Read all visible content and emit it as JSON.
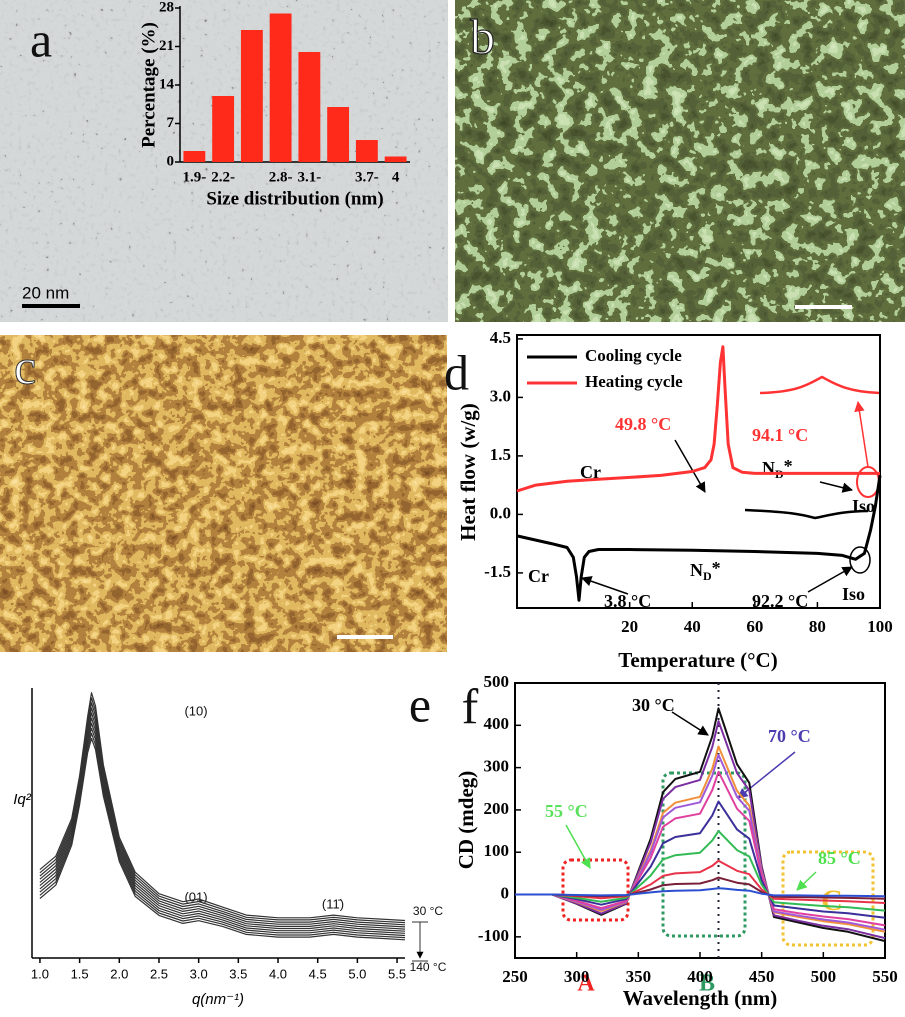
{
  "images": [
    {
      "panel": "a",
      "scale_bar": "20 nm"
    },
    {
      "panel": "b"
    },
    {
      "panel": "c"
    }
  ],
  "chart_data": [
    {
      "type": "bar",
      "ylabel": "Percentage (%)",
      "xlabel": "Size distribution (nm)",
      "categories": [
        "1.9-",
        "2.2-",
        null,
        "2.8-",
        "3.1-",
        null,
        "3.7-",
        "4"
      ],
      "values": [
        2,
        12,
        24,
        27,
        20,
        10,
        4,
        1
      ],
      "color": "#ff2a1a",
      "ylim": [
        0,
        28
      ],
      "yticks": [
        0,
        7,
        14,
        21,
        28
      ]
    },
    {
      "panel": "d",
      "type": "line",
      "xlabel": "Temperature (°C)",
      "ylabel": "Heat flow (w/g)",
      "xlim": [
        -16,
        100
      ],
      "xticks": [
        20,
        40,
        60,
        80,
        100
      ],
      "ylim": [
        -2.4,
        4.6
      ],
      "yticks": [
        -1.5,
        {
          "value": 0,
          "label": "0.0"
        },
        1.5,
        {
          "value": 3,
          "label": "3.0"
        },
        4.5
      ],
      "legend": "upper left",
      "series": [
        {
          "name": "Cooling cycle",
          "color": "#000000",
          "x": [
            -16,
            -5,
            0,
            2,
            3,
            3.8,
            4.5,
            5.5,
            7,
            10,
            20,
            40,
            60,
            80,
            88,
            92.2,
            95,
            97,
            98.5,
            100
          ],
          "values": [
            -0.55,
            -0.75,
            -0.85,
            -1.1,
            -1.6,
            -2.2,
            -1.6,
            -1.1,
            -0.95,
            -0.9,
            -0.9,
            -0.92,
            -0.95,
            -1.0,
            -1.05,
            -1.15,
            -1.0,
            -0.4,
            0.2,
            1.0
          ]
        },
        {
          "name": "Heating cycle",
          "color": "#ff3333",
          "x": [
            -16,
            -10,
            0,
            10,
            20,
            30,
            40,
            44,
            46,
            47,
            48,
            49,
            49.8,
            50.5,
            51.5,
            53,
            56,
            60,
            70,
            80,
            90,
            100
          ],
          "values": [
            0.6,
            0.75,
            0.85,
            0.9,
            0.95,
            1.0,
            1.1,
            1.2,
            1.4,
            1.8,
            2.8,
            3.9,
            4.3,
            3.2,
            1.8,
            1.2,
            1.08,
            1.05,
            1.05,
            1.05,
            1.05,
            1.05
          ]
        }
      ],
      "annotations": [
        {
          "text": "49.8 °C",
          "color": "#ff3333"
        },
        {
          "text": "94.1 °C",
          "color": "#ff3333"
        },
        {
          "text": "Cr",
          "color": "#000000"
        },
        {
          "text": "N",
          "sub": "D",
          "tail": "*",
          "color": "#000000"
        },
        {
          "text": "Iso",
          "color": "#000000"
        },
        {
          "text": "Cr",
          "color": "#000000"
        },
        {
          "text": "N",
          "sub": "D",
          "tail": "*",
          "color": "#000000"
        },
        {
          "text": "3.8 °C",
          "color": "#000000"
        },
        {
          "text": "92.2 °C",
          "color": "#000000"
        },
        {
          "text": "Iso",
          "color": "#000000"
        }
      ]
    },
    {
      "panel": "e",
      "type": "line",
      "xlabel": "q(nm⁻¹)",
      "ylabel": "Iq²",
      "xlim": [
        0.9,
        5.6
      ],
      "xticks": [
        {
          "value": 1,
          "label": "1.0"
        },
        1.5,
        {
          "value": 2,
          "label": "2.0"
        },
        2.5,
        {
          "value": 3,
          "label": "3.0"
        },
        3.5,
        {
          "value": 4,
          "label": "4.0"
        },
        4.5,
        {
          "value": 5,
          "label": "5.0"
        },
        5.5
      ],
      "ylim": [
        0,
        100
      ],
      "x": [
        1.0,
        1.2,
        1.4,
        1.5,
        1.6,
        1.65,
        1.7,
        1.8,
        2.0,
        2.2,
        2.5,
        2.8,
        3.0,
        3.3,
        3.6,
        4.0,
        4.4,
        4.7,
        5.0,
        5.3,
        5.6
      ],
      "series": [
        {
          "name": "30 °C",
          "color": "#333333",
          "values": [
            33,
            38,
            52,
            68,
            90,
            99,
            94,
            72,
            45,
            32,
            24,
            21,
            22,
            19,
            16,
            15,
            15,
            16,
            15,
            14.5,
            14
          ]
        },
        {
          "color": "#333333",
          "values": [
            31.8,
            36.8,
            50.9,
            66.8,
            88.5,
            97.1,
            92.2,
            70.7,
            44,
            31,
            23.1,
            20.1,
            21.1,
            18.2,
            15.2,
            14.2,
            14.2,
            15.2,
            14.2,
            13.7,
            13.2
          ]
        },
        {
          "color": "#333333",
          "values": [
            30.6,
            35.6,
            49.8,
            65.6,
            87,
            95.2,
            90.4,
            69.4,
            43,
            30,
            22.2,
            19.2,
            20.2,
            17.4,
            14.4,
            13.4,
            13.4,
            14.4,
            13.4,
            12.9,
            12.4
          ]
        },
        {
          "color": "#333333",
          "values": [
            29.4,
            34.4,
            48.7,
            64.4,
            85.5,
            93.3,
            88.6,
            68.1,
            42,
            29,
            21.3,
            18.3,
            19.3,
            16.6,
            13.6,
            12.6,
            12.6,
            13.6,
            12.6,
            12.1,
            11.6
          ]
        },
        {
          "color": "#333333",
          "values": [
            28.2,
            33.2,
            47.6,
            63.2,
            84,
            91.4,
            86.8,
            66.8,
            41,
            28,
            20.4,
            17.4,
            18.4,
            15.8,
            12.8,
            11.8,
            11.8,
            12.8,
            11.8,
            11.3,
            10.8
          ]
        },
        {
          "color": "#333333",
          "values": [
            27,
            32,
            46.5,
            62,
            82.5,
            89.5,
            85,
            65.5,
            40,
            27,
            19.5,
            16.5,
            17.5,
            15,
            12,
            11,
            11,
            12,
            11,
            10.5,
            10
          ]
        },
        {
          "color": "#333333",
          "values": [
            25.8,
            30.8,
            45.4,
            60.8,
            81,
            87.6,
            83.2,
            64.2,
            39,
            26,
            18.6,
            15.6,
            16.6,
            14.2,
            11.2,
            10.2,
            10.2,
            11.2,
            10.2,
            9.7,
            9.2
          ]
        },
        {
          "color": "#333333",
          "values": [
            24.6,
            29.6,
            44.3,
            59.6,
            79.5,
            85.7,
            81.4,
            62.9,
            38,
            25,
            17.7,
            14.7,
            15.7,
            13.4,
            10.4,
            9.4,
            9.4,
            10.4,
            9.4,
            8.9,
            8.4
          ]
        },
        {
          "color": "#333333",
          "values": [
            23.4,
            28.4,
            43.2,
            58.4,
            78,
            83.8,
            79.6,
            61.6,
            37,
            24,
            16.8,
            13.8,
            14.8,
            12.6,
            9.6,
            8.6,
            8.6,
            9.6,
            8.6,
            8.1,
            7.6
          ]
        },
        {
          "name": "140 °C",
          "color": "#333333",
          "values": [
            22.2,
            27.2,
            42.1,
            57.2,
            76.5,
            81.9,
            77.8,
            60.3,
            36,
            23,
            15.9,
            12.9,
            13.9,
            11.8,
            8.8,
            7.8,
            7.8,
            8.8,
            7.8,
            7.3,
            6.8
          ]
        }
      ],
      "annotations": [
        {
          "text": "(10)"
        },
        {
          "text": "(01)"
        },
        {
          "text": "(11̄)"
        }
      ]
    },
    {
      "panel": "f",
      "type": "line",
      "xlabel": "Wavelength (nm)",
      "ylabel": "CD (mdeg)",
      "xlim": [
        250,
        550
      ],
      "xticks": [
        250,
        300,
        350,
        400,
        450,
        500,
        550
      ],
      "ylim": [
        -150,
        500
      ],
      "yticks": [
        -100,
        0,
        100,
        200,
        300,
        400,
        500
      ],
      "vline": 415,
      "x": [
        250,
        280,
        300,
        320,
        340,
        360,
        370,
        380,
        400,
        410,
        415,
        420,
        430,
        440,
        450,
        460,
        480,
        500,
        520,
        550
      ],
      "series": [
        {
          "color": "#111111",
          "values": [
            0,
            0,
            -22,
            -48,
            -22,
            132,
            242,
            273,
            290,
            374,
            440,
            396,
            308,
            264,
            66,
            -53,
            -66,
            -79,
            -88,
            -110
          ]
        },
        {
          "color": "#7b2fa0",
          "values": [
            0,
            0,
            -21,
            -45,
            -21,
            123,
            226,
            254,
            271,
            349,
            410,
            369,
            287,
            246,
            62,
            -49,
            -62,
            -74,
            -82,
            -103
          ]
        },
        {
          "color": "#f0903a",
          "values": [
            0,
            0,
            -18,
            -39,
            -18,
            105,
            193,
            217,
            231,
            298,
            350,
            315,
            245,
            210,
            53,
            -42,
            -53,
            -63,
            -70,
            -88
          ]
        },
        {
          "color": "#a05ad8",
          "values": [
            0,
            0,
            -17,
            -36,
            -17,
            99,
            182,
            205,
            218,
            281,
            330,
            297,
            231,
            198,
            50,
            -40,
            -50,
            -59,
            -66,
            -83
          ]
        },
        {
          "color": "#e040a0",
          "values": [
            0,
            0,
            -15,
            -32,
            -15,
            87,
            160,
            180,
            191,
            247,
            290,
            261,
            203,
            174,
            44,
            -35,
            -44,
            -52,
            -58,
            -73
          ]
        },
        {
          "color": "#3b2f9a",
          "values": [
            0,
            0,
            -11,
            -24,
            -11,
            66,
            121,
            136,
            145,
            187,
            220,
            198,
            154,
            132,
            33,
            -26,
            -33,
            -40,
            -44,
            -55
          ]
        },
        {
          "color": "#33bb55",
          "values": [
            0,
            0,
            -8,
            -17,
            -8,
            45,
            83,
            93,
            99,
            128,
            150,
            135,
            105,
            90,
            23,
            -18,
            -23,
            -27,
            -30,
            -38
          ]
        },
        {
          "color": "#e8344a",
          "values": [
            0,
            0,
            -4,
            -9,
            -4,
            24,
            44,
            50,
            53,
            68,
            80,
            72,
            56,
            48,
            12,
            -10,
            -12,
            -14,
            -16,
            -20
          ]
        },
        {
          "color": "#7a1f3a",
          "values": [
            0,
            0,
            -2,
            -4,
            -2,
            12,
            22,
            25,
            26,
            34,
            40,
            36,
            28,
            24,
            6,
            -5,
            -6,
            -7,
            -8,
            -10
          ]
        },
        {
          "color": "#2b4fd0",
          "values": [
            0,
            0,
            -1,
            -2,
            -1,
            5,
            8,
            9,
            10,
            13,
            15,
            14,
            11,
            9,
            2,
            -2,
            -2,
            -3,
            -3,
            -4
          ]
        }
      ],
      "annotations": [
        {
          "text": "30 °C",
          "color": "#000000"
        },
        {
          "text": "70 °C",
          "color": "#4b3cb0"
        },
        {
          "text": "55 °C",
          "color": "#5be05b"
        },
        {
          "text": "85 °C",
          "color": "#4ee04e"
        },
        {
          "text": "A",
          "color": "#ee2222"
        },
        {
          "text": "B",
          "color": "#2e9960"
        },
        {
          "text": "C",
          "color": "#f2c233"
        }
      ]
    }
  ]
}
